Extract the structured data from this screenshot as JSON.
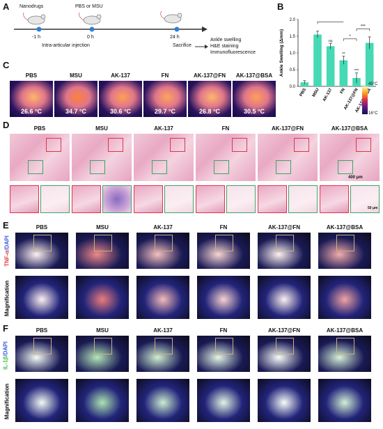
{
  "panels": {
    "A": "A",
    "B": "B",
    "C": "C",
    "D": "D",
    "E": "E",
    "F": "F"
  },
  "scheme": {
    "nanodrugs": "Nanodrugs",
    "pbs_or_msu": "PBS or MSU",
    "t1": "-1 h",
    "t2": "0 h",
    "t3": "24 h",
    "injection": "Intra-articular injection",
    "sacrifice": "Sacrifice",
    "outcomes": [
      "Ankle swelling",
      "H&E staining",
      "Immunofluorescence"
    ]
  },
  "groups": [
    "PBS",
    "MSU",
    "AK-137",
    "FN",
    "AK-137@FN",
    "AK-137@BSA"
  ],
  "thermal": {
    "temps": [
      "26.6 °C",
      "34.7 °C",
      "30.6 °C",
      "29.7 °C",
      "26.8 °C",
      "30.5 °C"
    ],
    "scale_max": "45°C",
    "scale_min": "16°C"
  },
  "he": {
    "scale_main": "400 μm",
    "scale_zoom": "50 μm"
  },
  "E": {
    "ylabel_a": "TNF-α",
    "ylabel_b": "/DAPI",
    "row2": "Magnification"
  },
  "F": {
    "ylabel_a": "IL-1β",
    "ylabel_b": "/DAPI",
    "row2": "Magnification"
  },
  "colors": {
    "bar": "#45d9b4",
    "he_box_red": "#e0334b",
    "he_box_green": "#3aa56a",
    "tnf": "#e23b3b",
    "il1b": "#3fbf4b",
    "dapi": "#3a5bd9"
  },
  "chart_data": {
    "type": "bar",
    "categories": [
      "PBS",
      "MSU",
      "AK-137",
      "FN",
      "AK-137@FN",
      "AK-137@BSA"
    ],
    "values": [
      0.12,
      1.55,
      1.2,
      0.78,
      0.25,
      1.3
    ],
    "errors": [
      0.05,
      0.1,
      0.08,
      0.12,
      0.15,
      0.18
    ],
    "ylabel": "Ankle Swelling (Δmm)",
    "ylim": [
      0,
      2.0
    ],
    "yticks": [
      "0.0",
      "0.5",
      "1.0",
      "1.5",
      "2.0"
    ],
    "annotations": [
      "ns",
      "**",
      "***",
      "*",
      "***"
    ]
  }
}
